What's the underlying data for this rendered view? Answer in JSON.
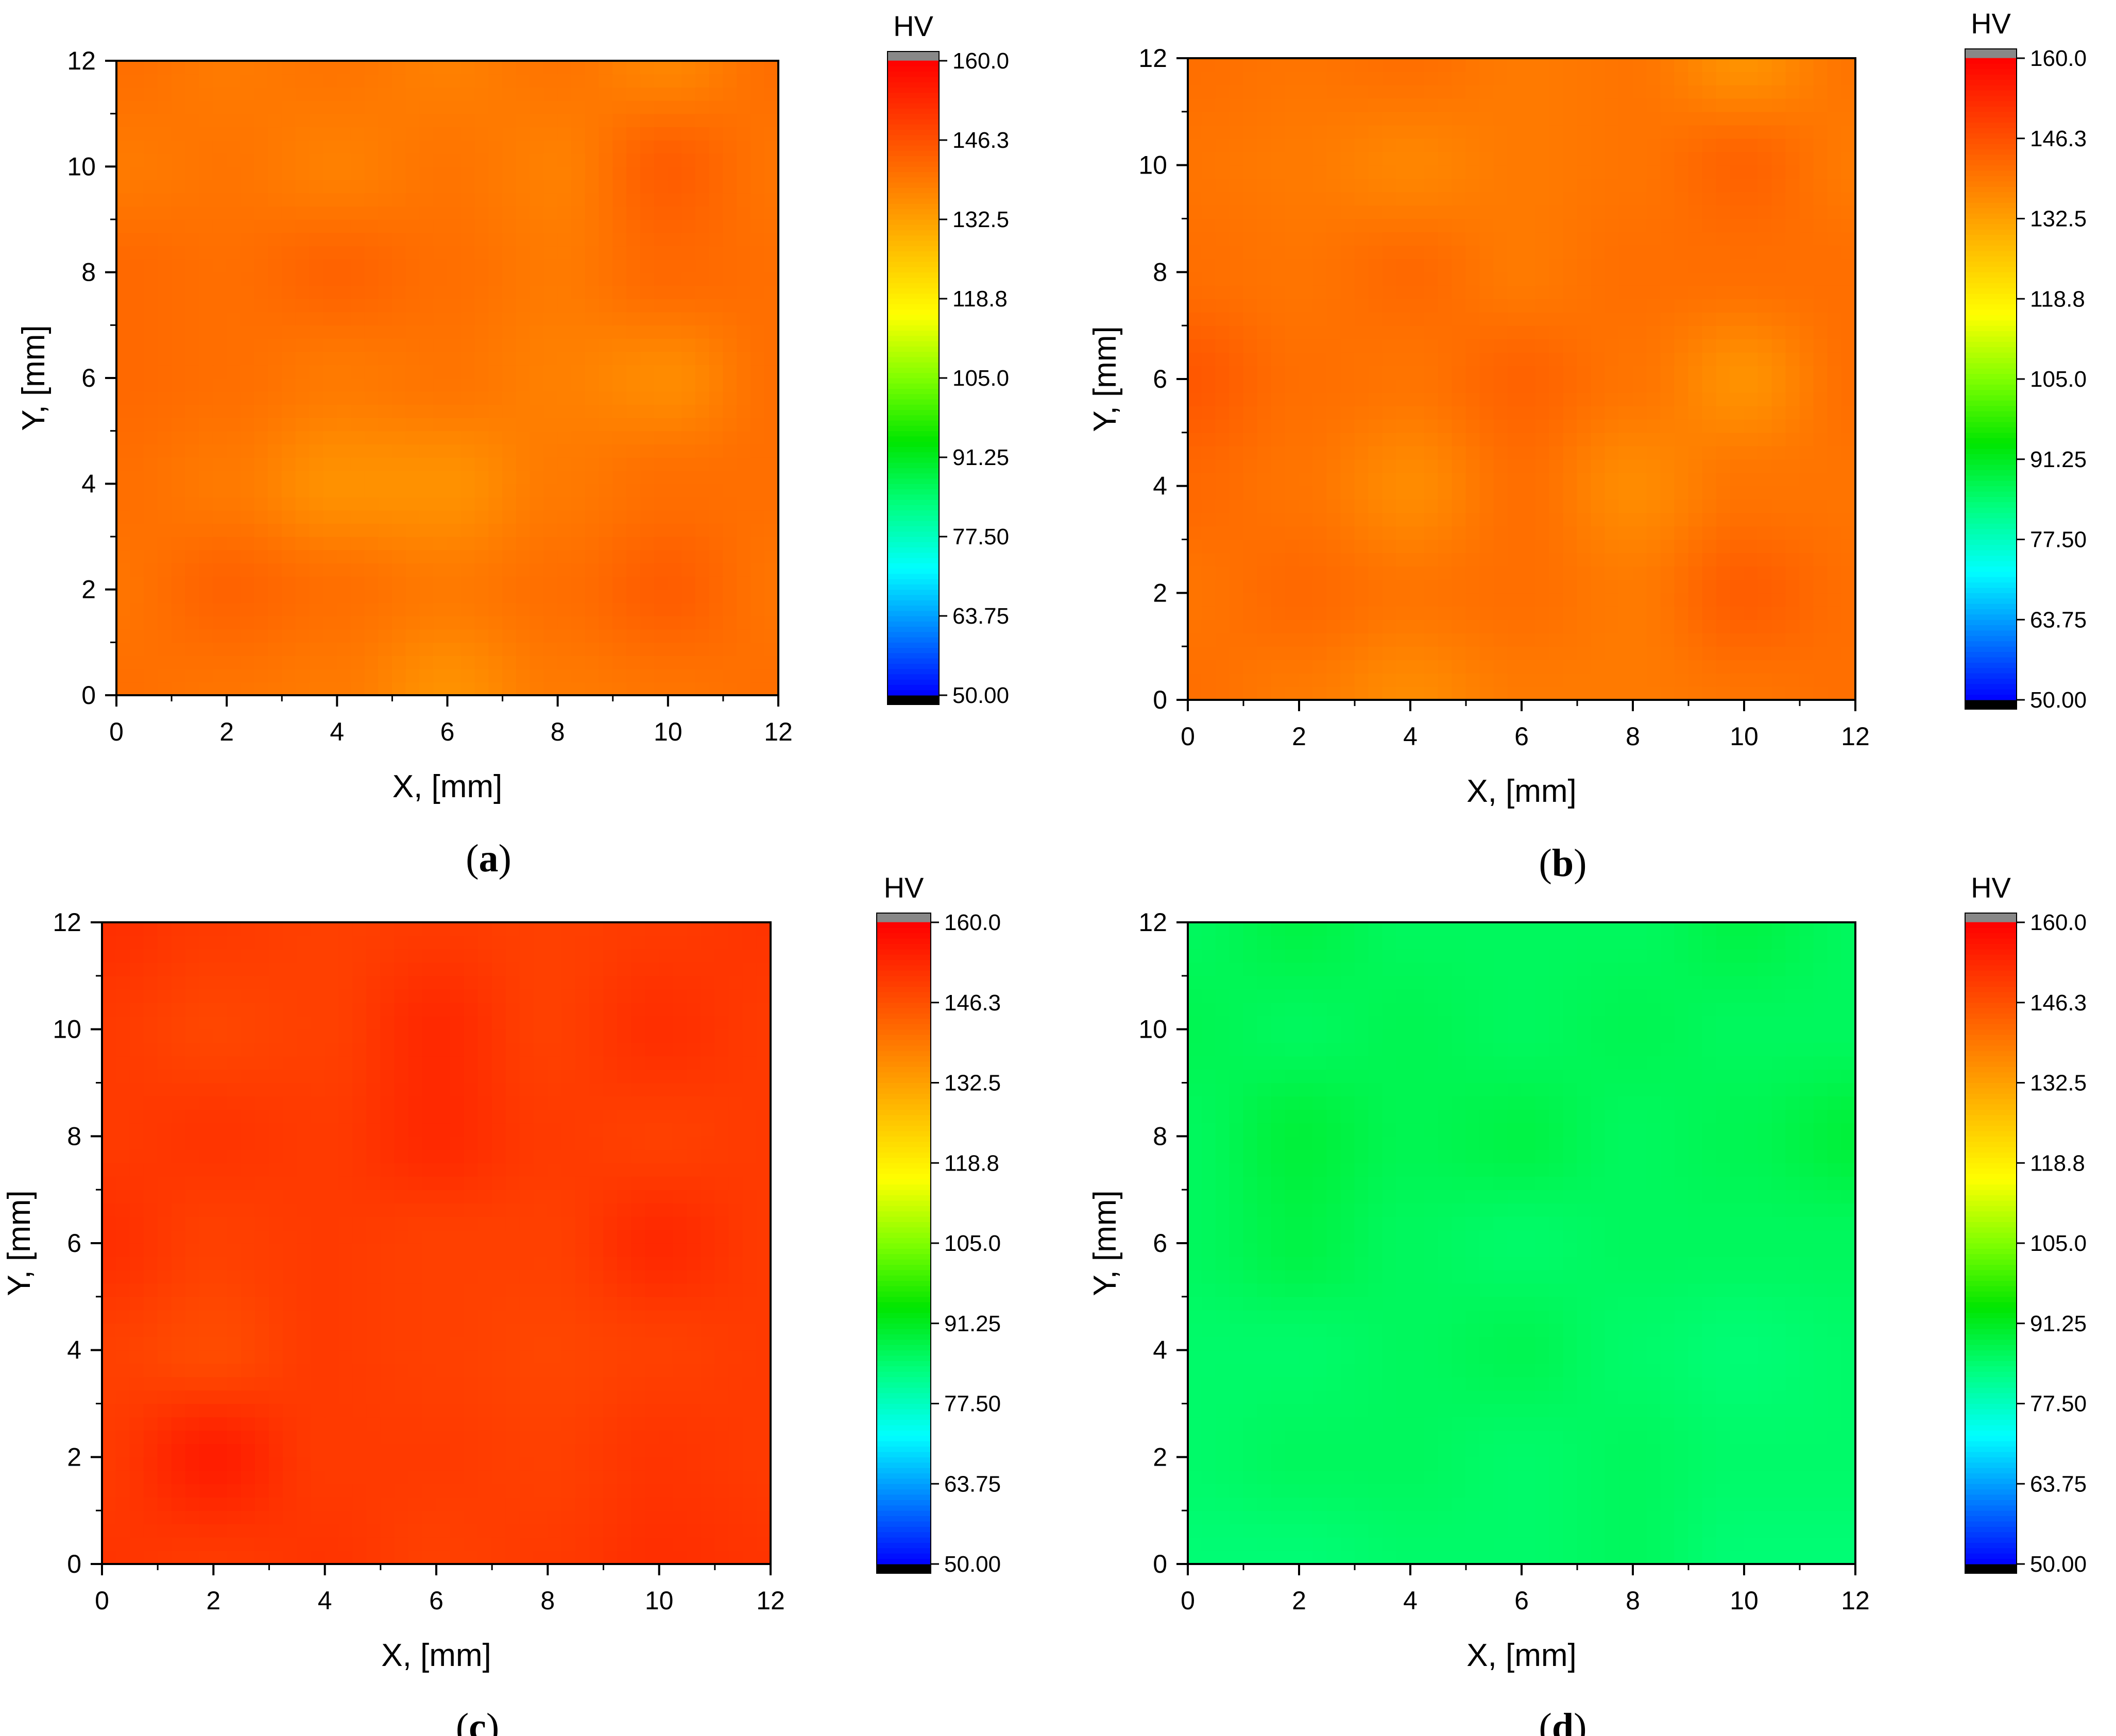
{
  "colors": {
    "colormap": [
      "#0000ff",
      "#0080ff",
      "#00ffff",
      "#00ff80",
      "#00e600",
      "#80ff00",
      "#ffff00",
      "#ffc000",
      "#ff8000",
      "#ff4000",
      "#ff0000"
    ],
    "over": "#888888",
    "under": "#000000",
    "axis": "#000000"
  },
  "chart_data": [
    {
      "panel": "a",
      "type": "heatmap",
      "caption": {
        "open": "(",
        "letter": "a",
        "close": ")"
      },
      "xlabel": "X, [mm]",
      "ylabel": "Y, [mm]",
      "xlim": [
        0,
        12
      ],
      "ylim": [
        0,
        12
      ],
      "xticks": [
        "0",
        "2",
        "4",
        "6",
        "8",
        "10",
        "12"
      ],
      "yticks": [
        "0",
        "2",
        "4",
        "6",
        "8",
        "10",
        "12"
      ],
      "colorbar": {
        "title": "HV",
        "min": 50,
        "max": 160,
        "ticks": [
          "50.00",
          "63.75",
          "77.50",
          "91.25",
          "105.0",
          "118.8",
          "132.5",
          "146.3",
          "160.0"
        ]
      },
      "x": [
        0,
        2,
        4,
        6,
        8,
        10,
        12
      ],
      "y": [
        0,
        2,
        4,
        6,
        8,
        10,
        12
      ],
      "z": [
        [
          141,
          140,
          139,
          135,
          139,
          140,
          141
        ],
        [
          140,
          143,
          141,
          139,
          141,
          144,
          140
        ],
        [
          141,
          139,
          135,
          135,
          139,
          141,
          141
        ],
        [
          142,
          141,
          139,
          140,
          138,
          136,
          141
        ],
        [
          142,
          141,
          143,
          141,
          139,
          142,
          141
        ],
        [
          139,
          140,
          138,
          140,
          138,
          144,
          140
        ],
        [
          141,
          139,
          140,
          138,
          140,
          137,
          141
        ]
      ]
    },
    {
      "panel": "b",
      "type": "heatmap",
      "caption": {
        "open": "(",
        "letter": "b",
        "close": ")"
      },
      "xlabel": "X, [mm]",
      "ylabel": "Y, [mm]",
      "xlim": [
        0,
        12
      ],
      "ylim": [
        0,
        12
      ],
      "xticks": [
        "0",
        "2",
        "4",
        "6",
        "8",
        "10",
        "12"
      ],
      "yticks": [
        "0",
        "2",
        "4",
        "6",
        "8",
        "10",
        "12"
      ],
      "colorbar": {
        "title": "HV",
        "min": 50,
        "max": 160,
        "ticks": [
          "50.00",
          "63.75",
          "77.50",
          "91.25",
          "105.0",
          "118.8",
          "132.5",
          "146.3",
          "160.0"
        ]
      },
      "x": [
        0,
        2,
        4,
        6,
        8,
        10,
        12
      ],
      "y": [
        0,
        2,
        4,
        6,
        8,
        10,
        12
      ],
      "z": [
        [
          141,
          139,
          136,
          139,
          139,
          140,
          141
        ],
        [
          140,
          142,
          140,
          141,
          139,
          144,
          141
        ],
        [
          142,
          140,
          136,
          141,
          136,
          140,
          140
        ],
        [
          145,
          141,
          140,
          143,
          140,
          135,
          141
        ],
        [
          141,
          140,
          142,
          139,
          141,
          141,
          141
        ],
        [
          140,
          139,
          137,
          139,
          140,
          143,
          139
        ],
        [
          141,
          140,
          141,
          139,
          140,
          135,
          140
        ]
      ]
    },
    {
      "panel": "c",
      "type": "heatmap",
      "caption": {
        "open": "(",
        "letter": "c",
        "close": ")"
      },
      "xlabel": "X, [mm]",
      "ylabel": "Y, [mm]",
      "xlim": [
        0,
        12
      ],
      "ylim": [
        0,
        12
      ],
      "xticks": [
        "0",
        "2",
        "4",
        "6",
        "8",
        "10",
        "12"
      ],
      "yticks": [
        "0",
        "2",
        "4",
        "6",
        "8",
        "10",
        "12"
      ],
      "colorbar": {
        "title": "HV",
        "min": 50,
        "max": 160,
        "ticks": [
          "50.00",
          "63.75",
          "77.50",
          "91.25",
          "105.0",
          "118.8",
          "132.5",
          "146.3",
          "160.0"
        ]
      },
      "x": [
        0,
        2,
        4,
        6,
        8,
        10,
        12
      ],
      "y": [
        0,
        2,
        4,
        6,
        8,
        10,
        12
      ],
      "z": [
        [
          151,
          150,
          151,
          149,
          150,
          152,
          151
        ],
        [
          150,
          155,
          150,
          150,
          149,
          151,
          150
        ],
        [
          149,
          147,
          150,
          149,
          148,
          149,
          150
        ],
        [
          152,
          149,
          150,
          149,
          149,
          153,
          150
        ],
        [
          150,
          151,
          150,
          153,
          150,
          149,
          150
        ],
        [
          150,
          148,
          149,
          153,
          149,
          152,
          150
        ],
        [
          152,
          150,
          149,
          150,
          149,
          150,
          151
        ]
      ]
    },
    {
      "panel": "d",
      "type": "heatmap",
      "caption": {
        "open": "(",
        "letter": "d",
        "close": ")"
      },
      "xlabel": "X, [mm]",
      "ylabel": "Y, [mm]",
      "xlim": [
        0,
        12
      ],
      "ylim": [
        0,
        12
      ],
      "xticks": [
        "0",
        "2",
        "4",
        "6",
        "8",
        "10",
        "12"
      ],
      "yticks": [
        "0",
        "2",
        "4",
        "6",
        "8",
        "10",
        "12"
      ],
      "colorbar": {
        "title": "HV",
        "min": 50,
        "max": 160,
        "ticks": [
          "50.00",
          "63.75",
          "77.50",
          "91.25",
          "105.0",
          "118.8",
          "132.5",
          "146.3",
          "160.0"
        ]
      },
      "x": [
        0,
        2,
        4,
        6,
        8,
        10,
        12
      ],
      "y": [
        0,
        2,
        4,
        6,
        8,
        10,
        12
      ],
      "z": [
        [
          84,
          84,
          85,
          85,
          86,
          84,
          84
        ],
        [
          85,
          86,
          86,
          85,
          86,
          85,
          85
        ],
        [
          85,
          85,
          86,
          87,
          85,
          84,
          85
        ],
        [
          86,
          88,
          86,
          85,
          86,
          86,
          86
        ],
        [
          86,
          89,
          87,
          88,
          86,
          87,
          89
        ],
        [
          87,
          86,
          87,
          86,
          87,
          86,
          86
        ],
        [
          86,
          88,
          86,
          86,
          86,
          88,
          86
        ]
      ]
    }
  ]
}
